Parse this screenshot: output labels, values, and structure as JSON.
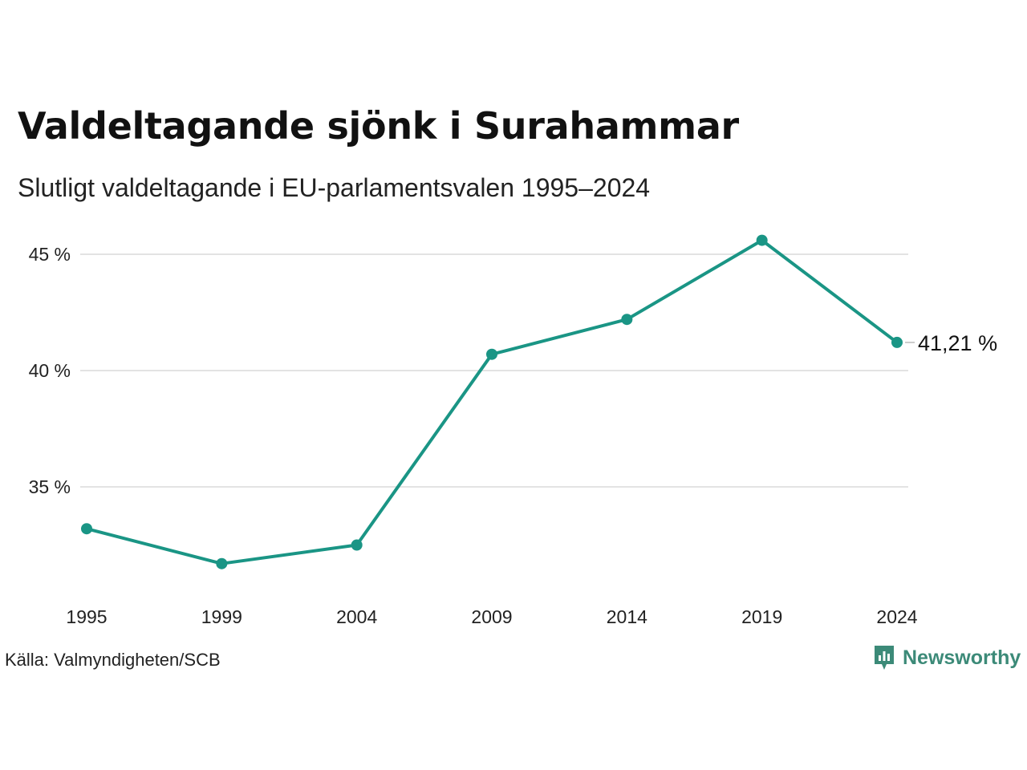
{
  "title": "Valdeltagande sjönk i Surahammar",
  "subtitle": "Slutligt valdeltagande i EU-parlamentsvalen 1995–2024",
  "source": "Källa: Valmyndigheten/SCB",
  "brand": {
    "name": "Newsworthy",
    "icon": "newsworthy-logo-icon",
    "color": "#3c8a78"
  },
  "colors": {
    "line": "#1a9585",
    "grid": "#e3e3e3",
    "text": "#222222"
  },
  "chart_data": {
    "type": "line",
    "x": [
      "1995",
      "1999",
      "2004",
      "2009",
      "2014",
      "2019",
      "2024"
    ],
    "series": [
      {
        "values": [
          33.2,
          31.7,
          32.5,
          40.7,
          42.2,
          45.6,
          41.21
        ]
      }
    ],
    "y_ticks": [
      {
        "value": 35,
        "label": "35 %"
      },
      {
        "value": 40,
        "label": "40 %"
      },
      {
        "value": 45,
        "label": "45 %"
      }
    ],
    "end_label": "41,21 %",
    "ylim": [
      31,
      46
    ],
    "grid": "horizontal",
    "markers": true,
    "legend": "none",
    "xlabel": "",
    "ylabel": ""
  }
}
